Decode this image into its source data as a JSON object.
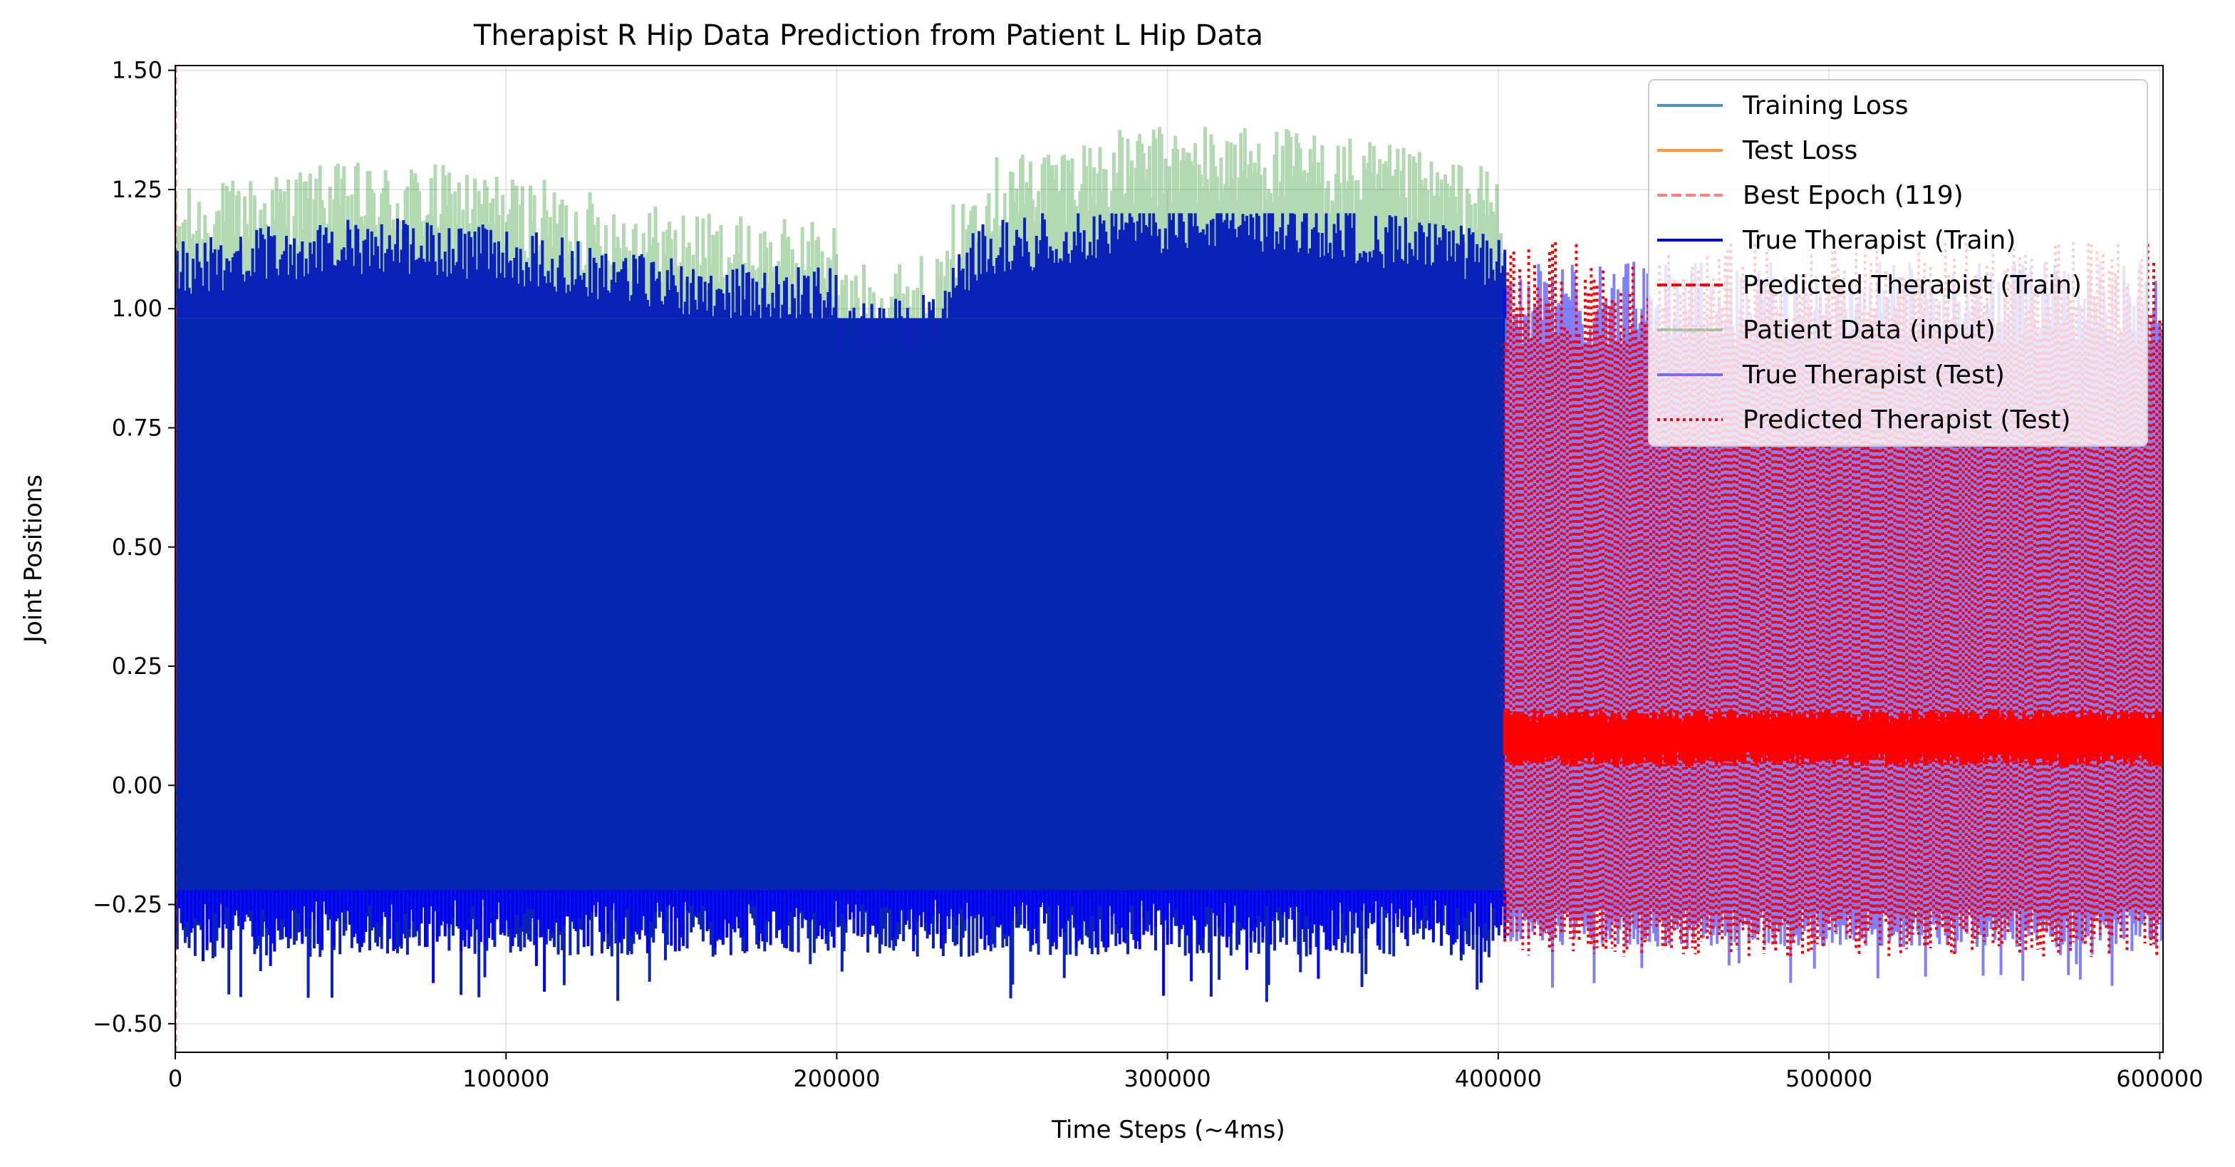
{
  "chart_data": {
    "type": "line",
    "title": "Therapist R Hip Data Prediction from Patient L Hip Data",
    "xlabel": "Time Steps (~4ms)",
    "ylabel": "Joint Positions",
    "xlim": [
      0,
      601000
    ],
    "ylim": [
      -0.56,
      1.51
    ],
    "x_ticks": [
      0,
      100000,
      200000,
      300000,
      400000,
      500000,
      600000
    ],
    "x_tick_labels": [
      "0",
      "100000",
      "200000",
      "300000",
      "400000",
      "500000",
      "600000"
    ],
    "y_ticks": [
      -0.5,
      -0.25,
      0.0,
      0.25,
      0.5,
      0.75,
      1.0,
      1.25,
      1.5
    ],
    "y_tick_labels": [
      "−0.50",
      "−0.25",
      "0.00",
      "0.25",
      "0.50",
      "0.75",
      "1.00",
      "1.25",
      "1.50"
    ],
    "grid": true,
    "legend_position": "upper right",
    "train_test_split_x": 402000,
    "series": [
      {
        "name": "Training Loss",
        "color": "#1f77b4",
        "style": "solid",
        "opacity": 0.8,
        "points": []
      },
      {
        "name": "Test Loss",
        "color": "#ff7f0e",
        "style": "solid",
        "opacity": 0.8,
        "points": []
      },
      {
        "name": "Best Epoch (119)",
        "color": "#ff0000",
        "style": "dashed",
        "opacity": 0.5,
        "x": 0
      },
      {
        "name": "True Therapist (Train)",
        "color": "#0000ff",
        "style": "solid",
        "opacity": 1.0,
        "x_range": [
          0,
          402000
        ],
        "envelope_min": [
          -0.47,
          -0.26
        ],
        "envelope_max": [
          1.0,
          1.2
        ]
      },
      {
        "name": "Predicted Therapist (Train)",
        "color": "#ff0000",
        "style": "dashed",
        "opacity": 1.0,
        "x_range": [
          0,
          402000
        ],
        "approx_level": [
          0.0,
          1.0
        ]
      },
      {
        "name": "Patient Data (input)",
        "color": "#008000",
        "style": "solid",
        "opacity": 0.3,
        "x_range": [
          0,
          402000
        ],
        "envelope_max": [
          0.92,
          1.42
        ]
      },
      {
        "name": "True Therapist (Test)",
        "color": "#0000ff",
        "style": "solid",
        "opacity": 0.5,
        "x_range": [
          402000,
          601000
        ],
        "envelope_min": [
          -0.44,
          -0.27
        ],
        "envelope_max": [
          0.95,
          1.12
        ]
      },
      {
        "name": "Predicted Therapist (Test)",
        "color": "#ff0000",
        "style": "dotted",
        "opacity": 1.0,
        "x_range": [
          402000,
          601000
        ],
        "envelope_min": [
          -0.38,
          -0.28
        ],
        "envelope_max": [
          1.0,
          1.2
        ],
        "mean_band": [
          0.04,
          0.16
        ]
      }
    ]
  }
}
